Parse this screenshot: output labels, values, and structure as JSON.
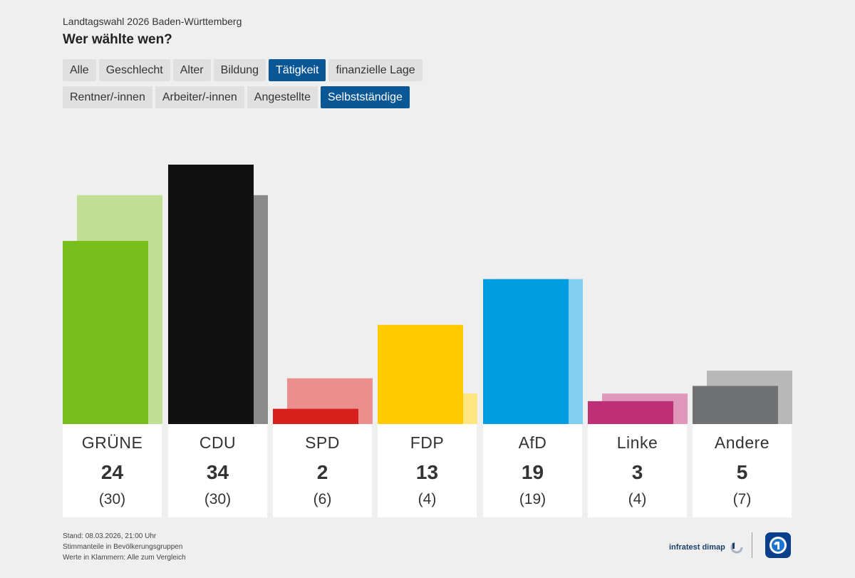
{
  "header": {
    "subtitle": "Landtagswahl 2026 Baden-Württemberg",
    "title": "Wer wählte wen?"
  },
  "tabs_row1": [
    {
      "label": "Alle",
      "active": false
    },
    {
      "label": "Geschlecht",
      "active": false
    },
    {
      "label": "Alter",
      "active": false
    },
    {
      "label": "Bildung",
      "active": false
    },
    {
      "label": "Tätigkeit",
      "active": true
    },
    {
      "label": "finanzielle Lage",
      "active": false
    }
  ],
  "tabs_row2": [
    {
      "label": "Rentner/-innen",
      "active": false
    },
    {
      "label": "Arbeiter/-innen",
      "active": false
    },
    {
      "label": "Angestellte",
      "active": false
    },
    {
      "label": "Selbstständige",
      "active": true
    }
  ],
  "chart_data": {
    "type": "bar",
    "title": "Wer wählte wen?",
    "categories": [
      "GRÜNE",
      "CDU",
      "SPD",
      "FDP",
      "AfD",
      "Linke",
      "Andere"
    ],
    "series": [
      {
        "name": "Selbstständige",
        "values": [
          24,
          34,
          2,
          13,
          19,
          3,
          5
        ]
      },
      {
        "name": "Alle",
        "values": [
          30,
          30,
          6,
          4,
          19,
          4,
          7
        ]
      }
    ],
    "value_labels": [
      "24",
      "34",
      "2",
      "13",
      "19",
      "3",
      "5"
    ],
    "comparison_labels": [
      "(30)",
      "(30)",
      "(6)",
      "(4)",
      "(19)",
      "(4)",
      "(7)"
    ],
    "colors": [
      "#78be1b",
      "#111111",
      "#d7201b",
      "#ffcb00",
      "#009de0",
      "#be3075",
      "#707173"
    ],
    "comparison_colors": [
      "#c0df94",
      "#8a8a8a",
      "#ea8f8d",
      "#ffe580",
      "#80cef0",
      "#df98ba",
      "#b8b8b9"
    ],
    "ylim": [
      0,
      34
    ]
  },
  "footer": {
    "line1": "Stand: 08.03.2026, 21:00 Uhr",
    "line2": "Stimmanteile in Bevölkerungsgruppen",
    "line3": "Werte in Klammern: Alle zum Vergleich"
  },
  "logos": {
    "infratest": "infratest dimap",
    "broadcaster": "ARD"
  }
}
